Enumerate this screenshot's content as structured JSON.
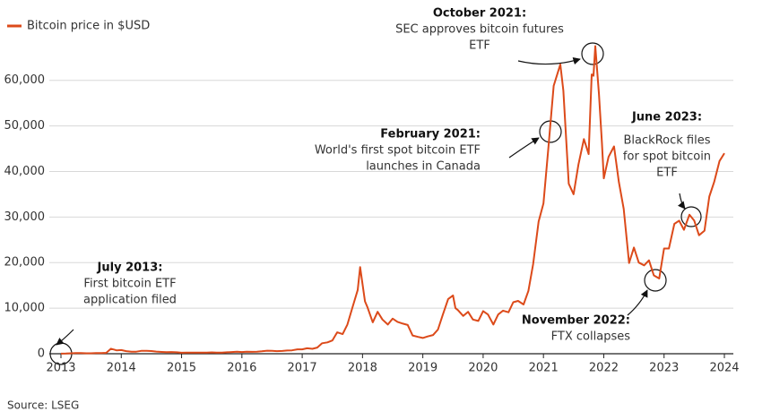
{
  "chart_data": {
    "type": "line",
    "series": [
      {
        "name": "Bitcoin price in $USD",
        "color": "#dc4a1a",
        "values": [
          20,
          33,
          90,
          140,
          130,
          100,
          100,
          130,
          130,
          200,
          1100,
          750,
          800,
          570,
          460,
          450,
          620,
          640,
          590,
          480,
          390,
          340,
          380,
          320,
          220,
          250,
          245,
          235,
          230,
          260,
          285,
          230,
          235,
          310,
          380,
          430,
          370,
          435,
          415,
          450,
          530,
          670,
          620,
          575,
          610,
          700,
          740,
          960,
          970,
          1190,
          1080,
          1350,
          2300,
          2500,
          2900,
          4700,
          4300,
          6400,
          10000,
          14000,
          19000,
          11500,
          10300,
          6900,
          9200,
          7500,
          6400,
          7700,
          7000,
          6600,
          6300,
          4000,
          3700,
          3450,
          3800,
          4100,
          5300,
          8500,
          12000,
          12800,
          10000,
          9600,
          8300,
          9200,
          7500,
          7200,
          9350,
          8600,
          6400,
          8600,
          9450,
          9100,
          11300,
          11600,
          10800,
          13800,
          19700,
          29000,
          33000,
          45000,
          58800,
          63500,
          57700,
          37300,
          35000,
          41500,
          47100,
          43800,
          61300,
          61000,
          67500,
          57000,
          46300,
          38500,
          43200,
          45500,
          37700,
          31800,
          19900,
          23300,
          20000,
          19400,
          20500,
          17200,
          16500,
          23100,
          23100,
          28500,
          29200,
          27200,
          30500,
          29200,
          26000,
          27000,
          34500,
          37700,
          42300,
          44000
        ]
      }
    ],
    "x": [
      2013,
      2013.08,
      2013.17,
      2013.25,
      2013.33,
      2013.42,
      2013.5,
      2013.58,
      2013.67,
      2013.75,
      2013.83,
      2013.92,
      2014,
      2014.08,
      2014.17,
      2014.25,
      2014.33,
      2014.42,
      2014.5,
      2014.58,
      2014.67,
      2014.75,
      2014.83,
      2014.92,
      2015,
      2015.08,
      2015.17,
      2015.25,
      2015.33,
      2015.42,
      2015.5,
      2015.58,
      2015.67,
      2015.75,
      2015.83,
      2015.92,
      2016,
      2016.08,
      2016.17,
      2016.25,
      2016.33,
      2016.42,
      2016.5,
      2016.58,
      2016.67,
      2016.75,
      2016.83,
      2016.92,
      2017,
      2017.08,
      2017.17,
      2017.25,
      2017.33,
      2017.42,
      2017.5,
      2017.58,
      2017.67,
      2017.75,
      2017.83,
      2017.92,
      2017.96,
      2018.04,
      2018.08,
      2018.17,
      2018.25,
      2018.33,
      2018.42,
      2018.5,
      2018.58,
      2018.67,
      2018.75,
      2018.83,
      2018.92,
      2019,
      2019.08,
      2019.17,
      2019.25,
      2019.33,
      2019.42,
      2019.5,
      2019.54,
      2019.58,
      2019.67,
      2019.75,
      2019.83,
      2019.92,
      2020,
      2020.08,
      2020.17,
      2020.25,
      2020.33,
      2020.42,
      2020.5,
      2020.58,
      2020.67,
      2020.75,
      2020.83,
      2020.92,
      2021,
      2021.08,
      2021.17,
      2021.28,
      2021.33,
      2021.42,
      2021.5,
      2021.58,
      2021.67,
      2021.75,
      2021.8,
      2021.83,
      2021.86,
      2021.92,
      2021.97,
      2022,
      2022.08,
      2022.17,
      2022.25,
      2022.33,
      2022.42,
      2022.5,
      2022.58,
      2022.67,
      2022.75,
      2022.83,
      2022.92,
      2023,
      2023.08,
      2023.17,
      2023.25,
      2023.33,
      2023.42,
      2023.5,
      2023.58,
      2023.67,
      2023.75,
      2023.83,
      2023.92,
      2024
    ],
    "xlim": [
      2013,
      2024
    ],
    "xticks": [
      2013,
      2014,
      2015,
      2016,
      2017,
      2018,
      2019,
      2020,
      2021,
      2022,
      2023,
      2024
    ],
    "ylim": [
      0,
      68000
    ],
    "yticks": [
      0,
      {
        "value": 10000,
        "label": "10,000"
      },
      {
        "value": 20000,
        "label": "20,000"
      },
      {
        "value": 30000,
        "label": "30,000"
      },
      {
        "value": 40000,
        "label": "40,000"
      },
      {
        "value": 50000,
        "label": "50,000"
      },
      {
        "value": 60000,
        "label": "60,000"
      }
    ],
    "grid": true,
    "legend": "top-left",
    "annotations": [
      {
        "title": "July 2013:",
        "lines": [
          "First bitcoin ETF",
          "application filed"
        ]
      },
      {
        "title": "February 2021:",
        "lines": [
          "World's first spot bitcoin ETF",
          "launches in Canada"
        ]
      },
      {
        "title": "October 2021:",
        "lines": [
          "SEC approves bitcoin futures",
          "ETF"
        ]
      },
      {
        "title": "June 2023:",
        "lines": [
          "BlackRock files",
          "for spot bitcoin",
          "ETF"
        ]
      },
      {
        "title": "November 2022:",
        "lines": [
          "FTX collapses"
        ]
      }
    ],
    "source": "Source: LSEG"
  }
}
